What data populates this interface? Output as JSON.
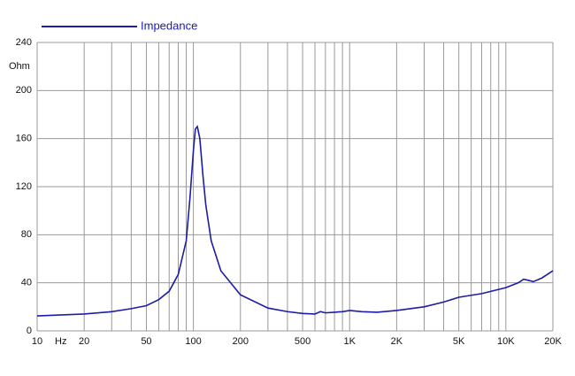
{
  "chart_data": {
    "type": "line",
    "legend_position": "top-left",
    "y_label": "Ohm",
    "x_label": "Hz",
    "log_x": true,
    "grid": true,
    "xlim": [
      10,
      20000
    ],
    "ylim": [
      0,
      240
    ],
    "yticks": [
      0,
      40,
      80,
      120,
      160,
      200,
      240
    ],
    "xticks": [
      10,
      20,
      50,
      100,
      200,
      500,
      {
        "value": 1000,
        "label": "1K"
      },
      {
        "value": 2000,
        "label": "2K"
      },
      {
        "value": 5000,
        "label": "5K"
      },
      {
        "value": 10000,
        "label": "10K"
      },
      {
        "value": 20000,
        "label": "20K"
      }
    ],
    "x_minor_ticks": [
      30,
      40,
      60,
      70,
      80,
      90,
      300,
      400,
      600,
      700,
      800,
      900,
      3000,
      4000,
      6000,
      7000,
      8000,
      9000
    ],
    "x": [
      10,
      20,
      30,
      40,
      50,
      60,
      70,
      80,
      90,
      95,
      100,
      103,
      106,
      110,
      115,
      120,
      130,
      150,
      200,
      300,
      400,
      500,
      600,
      650,
      700,
      800,
      900,
      1000,
      1200,
      1500,
      2000,
      3000,
      4000,
      5000,
      7000,
      10000,
      12000,
      13000,
      14000,
      15000,
      17000,
      20000
    ],
    "series": [
      {
        "name": "Impedance",
        "color": "#1c1ca8",
        "values": [
          12.5,
          14,
          16,
          18.5,
          21,
          26,
          33,
          47,
          75,
          110,
          150,
          168,
          170,
          160,
          130,
          105,
          75,
          50,
          30,
          19,
          16,
          14.5,
          14,
          16,
          15,
          15.5,
          16,
          17,
          16,
          15.5,
          17,
          20,
          24,
          28,
          31,
          36,
          40,
          43,
          42,
          41,
          44,
          50
        ]
      }
    ]
  }
}
